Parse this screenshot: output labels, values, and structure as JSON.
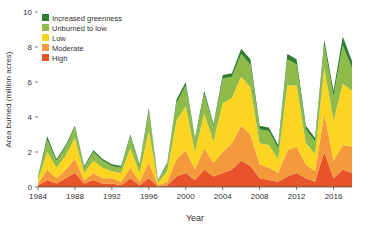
{
  "chart_data": {
    "type": "area",
    "stacked": true,
    "x_label": "Year",
    "y_label": "Area burned (million acres)",
    "x": [
      1984,
      1985,
      1986,
      1987,
      1988,
      1989,
      1990,
      1991,
      1992,
      1993,
      1994,
      1995,
      1996,
      1997,
      1998,
      1999,
      2000,
      2001,
      2002,
      2003,
      2004,
      2005,
      2006,
      2007,
      2008,
      2009,
      2010,
      2011,
      2012,
      2013,
      2014,
      2015,
      2016,
      2017,
      2018
    ],
    "xlim": [
      1984,
      2018
    ],
    "xticks": [
      1984,
      1988,
      1992,
      1996,
      2000,
      2004,
      2008,
      2012,
      2016
    ],
    "ylim": [
      0,
      10
    ],
    "yticks": [
      0,
      2,
      4,
      6,
      8,
      10
    ],
    "grid": false,
    "legend": "upper left",
    "series": [
      {
        "name": "High",
        "color": "#e8542a",
        "values": [
          0.1,
          0.4,
          0.2,
          0.5,
          0.8,
          0.2,
          0.4,
          0.2,
          0.2,
          0.1,
          0.5,
          0.1,
          0.5,
          0.05,
          0.1,
          0.6,
          0.8,
          0.4,
          1.0,
          0.6,
          0.8,
          1.0,
          1.5,
          1.2,
          0.5,
          0.4,
          0.3,
          0.6,
          0.8,
          0.5,
          0.3,
          2.0,
          0.5,
          1.0,
          0.8
        ]
      },
      {
        "name": "Moderate",
        "color": "#f59a3c",
        "values": [
          0.1,
          0.6,
          0.3,
          0.5,
          0.8,
          0.2,
          0.4,
          0.3,
          0.3,
          0.2,
          0.6,
          0.2,
          0.9,
          0.05,
          0.2,
          1.0,
          1.3,
          0.6,
          1.2,
          0.8,
          1.2,
          1.5,
          2.0,
          1.8,
          0.8,
          0.7,
          0.5,
          1.5,
          1.5,
          0.8,
          0.6,
          2.2,
          1.0,
          1.4,
          1.5
        ]
      },
      {
        "name": "Low",
        "color": "#fcd422",
        "values": [
          0.2,
          1.0,
          0.6,
          0.8,
          1.2,
          0.4,
          0.7,
          0.6,
          0.4,
          0.5,
          1.1,
          0.5,
          1.8,
          0.15,
          0.6,
          2.2,
          2.5,
          1.0,
          2.0,
          1.2,
          2.8,
          2.6,
          2.8,
          2.7,
          1.2,
          1.3,
          0.8,
          3.7,
          3.5,
          1.2,
          1.0,
          2.6,
          2.3,
          3.5,
          3.2
        ]
      },
      {
        "name": "Unburned to low",
        "color": "#8ebb4a",
        "values": [
          0.15,
          0.7,
          0.4,
          0.5,
          0.6,
          0.3,
          0.5,
          0.4,
          0.3,
          0.3,
          0.7,
          0.4,
          1.1,
          0.1,
          0.4,
          1.0,
          1.2,
          0.7,
          1.1,
          0.9,
          1.4,
          1.2,
          1.3,
          1.3,
          0.8,
          0.8,
          0.6,
          1.5,
          1.2,
          0.8,
          0.7,
          1.3,
          1.4,
          2.2,
          1.3
        ]
      },
      {
        "name": "Increased greenness",
        "color": "#2e7d32",
        "values": [
          0.05,
          0.2,
          0.1,
          0.1,
          0.1,
          0.1,
          0.1,
          0.1,
          0.1,
          0.1,
          0.1,
          0.1,
          0.2,
          0.05,
          0.1,
          0.2,
          0.2,
          0.1,
          0.2,
          0.1,
          0.2,
          0.2,
          0.3,
          0.3,
          0.2,
          0.2,
          0.2,
          0.3,
          0.3,
          0.2,
          0.2,
          0.3,
          0.3,
          0.5,
          0.4
        ]
      }
    ]
  }
}
